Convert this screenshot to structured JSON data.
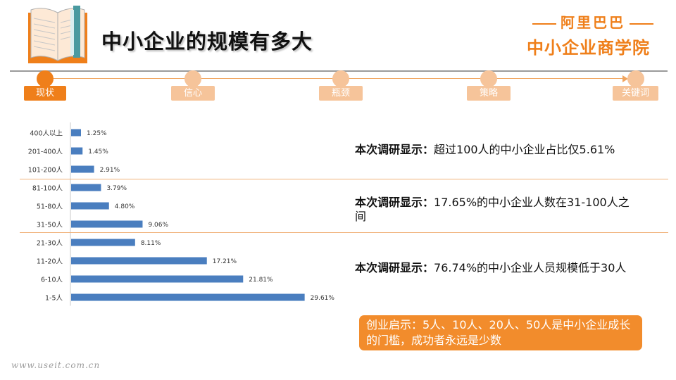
{
  "header": {
    "title": "中小企业的规模有多大",
    "brand_top": "阿里巴巴",
    "brand_bottom": "中小企业商学院"
  },
  "timeline": {
    "steps": [
      {
        "label": "现状",
        "active": true
      },
      {
        "label": "信心",
        "active": false
      },
      {
        "label": "瓶颈",
        "active": false
      },
      {
        "label": "策略",
        "active": false
      },
      {
        "label": "关键词",
        "active": false
      }
    ]
  },
  "colors": {
    "accent": "#ef7f1a",
    "accent_light": "#f6c49a",
    "bar": "#4a7ebf",
    "callout_bg": "#f28c2c"
  },
  "chart_data": {
    "type": "bar",
    "orientation": "horizontal",
    "categories": [
      "400人以上",
      "201-400人",
      "101-200人",
      "81-100人",
      "51-80人",
      "31-50人",
      "21-30人",
      "11-20人",
      "6-10人",
      "1-5人"
    ],
    "values": [
      1.25,
      1.45,
      2.91,
      3.79,
      4.8,
      9.06,
      8.11,
      17.21,
      21.81,
      29.61
    ],
    "value_labels": [
      "1.25%",
      "1.45%",
      "2.91%",
      "3.79%",
      "4.80%",
      "9.06%",
      "8.11%",
      "17.21%",
      "21.81%",
      "29.61%"
    ],
    "unit": "%",
    "xlim": [
      0,
      30
    ],
    "grid": false,
    "legend": "none"
  },
  "findings": [
    {
      "prefix": "本次调研显示：",
      "text": "超过100人的中小企业占比仅5.61%"
    },
    {
      "prefix": "本次调研显示：",
      "text": "17.65%的中小企业人数在31-100人之间"
    },
    {
      "prefix": "本次调研显示：",
      "text": "76.74%的中小企业人员规模低于30人"
    }
  ],
  "callout": {
    "text": "创业启示：5人、10人、20人、50人是中小企业成长的门槛，成功者永远是少数"
  },
  "watermark": "www.useit.com.cn"
}
